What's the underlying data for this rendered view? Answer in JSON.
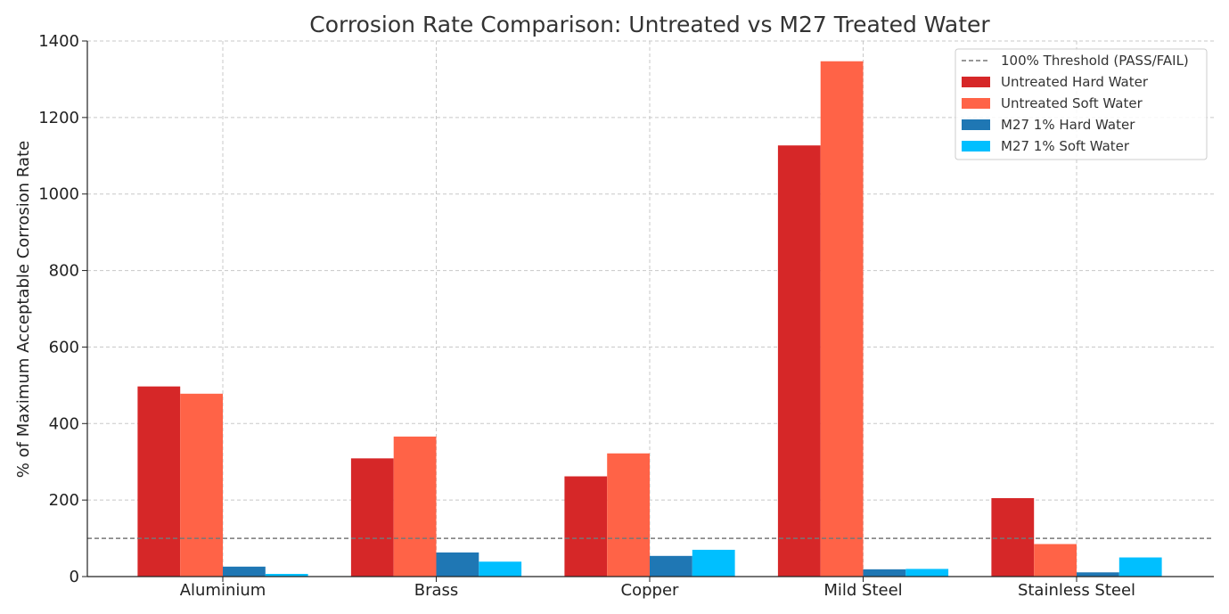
{
  "chart_data": {
    "type": "bar",
    "title": "Corrosion Rate Comparison: Untreated vs M27 Treated Water",
    "xlabel": "",
    "ylabel": "% of Maximum Acceptable Corrosion Rate",
    "ylim": [
      0,
      1400
    ],
    "yticks": [
      0,
      200,
      400,
      600,
      800,
      1000,
      1200,
      1400
    ],
    "grid": true,
    "legend_position": "top-right",
    "categories": [
      "Aluminium",
      "Brass",
      "Copper",
      "Mild Steel",
      "Stainless Steel"
    ],
    "series": [
      {
        "name": "Untreated Hard Water",
        "color": "#d62728",
        "values": [
          497,
          309,
          262,
          1127,
          205
        ]
      },
      {
        "name": "Untreated Soft Water",
        "color": "#ff6347",
        "values": [
          478,
          366,
          322,
          1347,
          85
        ]
      },
      {
        "name": "M27 1% Hard Water",
        "color": "#1f77b4",
        "values": [
          26,
          63,
          54,
          19,
          11
        ]
      },
      {
        "name": "M27 1% Soft Water",
        "color": "#00bfff",
        "values": [
          7,
          39,
          70,
          20,
          50
        ]
      }
    ],
    "threshold": {
      "name": "100% Threshold (PASS/FAIL)",
      "value": 100,
      "color": "#777777"
    }
  }
}
